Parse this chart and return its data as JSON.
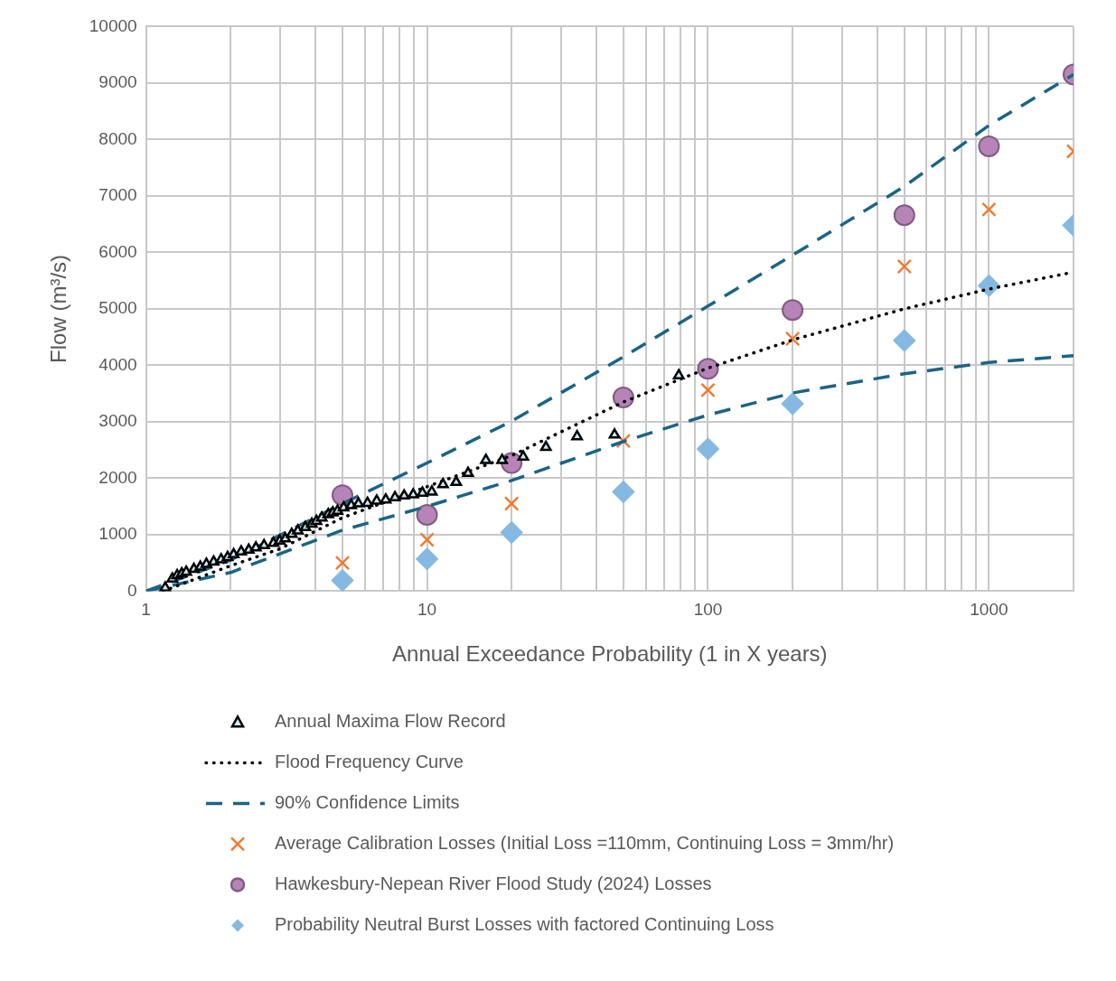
{
  "chart_data": {
    "type": "scatter",
    "xlabel": "Annual Exceedance Probability (1 in X years)",
    "ylabel": "Flow (m³/s)",
    "log": "x",
    "xlim": [
      1,
      2000
    ],
    "xticks": [
      1,
      {
        "value": 2,
        "label": null
      },
      {
        "value": 3,
        "label": null
      },
      {
        "value": 4,
        "label": null
      },
      {
        "value": 5,
        "label": null
      },
      {
        "value": 6,
        "label": null
      },
      {
        "value": 7,
        "label": null
      },
      {
        "value": 8,
        "label": null
      },
      {
        "value": 9,
        "label": null
      },
      10,
      {
        "value": 20,
        "label": null
      },
      {
        "value": 30,
        "label": null
      },
      {
        "value": 40,
        "label": null
      },
      {
        "value": 50,
        "label": null
      },
      {
        "value": 60,
        "label": null
      },
      {
        "value": 70,
        "label": null
      },
      {
        "value": 80,
        "label": null
      },
      {
        "value": 90,
        "label": null
      },
      100,
      {
        "value": 200,
        "label": null
      },
      {
        "value": 300,
        "label": null
      },
      {
        "value": 400,
        "label": null
      },
      {
        "value": 500,
        "label": null
      },
      {
        "value": 600,
        "label": null
      },
      {
        "value": 700,
        "label": null
      },
      {
        "value": 800,
        "label": null
      },
      {
        "value": 900,
        "label": null
      },
      1000,
      {
        "value": 2000,
        "label": null
      }
    ],
    "ylim": [
      0,
      10000
    ],
    "yticks": [
      0,
      1000,
      2000,
      3000,
      4000,
      5000,
      6000,
      7000,
      8000,
      9000,
      10000
    ],
    "grid": true,
    "legend": "bottom",
    "series": [
      {
        "name": "Annual Maxima Flow Record",
        "type": "scatter",
        "marker": "triangle",
        "color": "#000000",
        "x": [
          1.17,
          1.24,
          1.29,
          1.34,
          1.39,
          1.48,
          1.56,
          1.64,
          1.74,
          1.85,
          1.95,
          2.05,
          2.18,
          2.32,
          2.46,
          2.63,
          2.84,
          2.99,
          3.13,
          3.3,
          3.47,
          3.69,
          3.89,
          4.04,
          4.22,
          4.45,
          4.62,
          4.8,
          5.05,
          5.37,
          5.7,
          6.14,
          6.62,
          7.13,
          7.69,
          8.29,
          8.93,
          9.63,
          10.4,
          11.4,
          12.7,
          14.0,
          16.2,
          18.5,
          22.0,
          26.5,
          34.2,
          46.5,
          78.7
        ],
        "values": [
          60,
          220,
          280,
          310,
          340,
          390,
          430,
          480,
          520,
          560,
          600,
          650,
          700,
          730,
          770,
          810,
          850,
          890,
          930,
          1010,
          1070,
          1130,
          1190,
          1240,
          1300,
          1360,
          1390,
          1420,
          1480,
          1520,
          1550,
          1560,
          1600,
          1620,
          1660,
          1690,
          1710,
          1740,
          1760,
          1890,
          1930,
          2090,
          2320,
          2320,
          2380,
          2550,
          2740,
          2770,
          3820
        ]
      },
      {
        "name": "Flood Frequency Curve",
        "type": "line",
        "line_style": "dotted",
        "marker": "none",
        "color": "#000000",
        "x": [
          1.15,
          2,
          3,
          5,
          10,
          20,
          50,
          100,
          200,
          500,
          1000,
          2000
        ],
        "values": [
          0,
          450,
          750,
          1300,
          1850,
          2400,
          3350,
          3950,
          4450,
          5000,
          5350,
          5650
        ]
      },
      {
        "name": "90% Confidence Limits",
        "type": "line",
        "line_style": "dashed",
        "marker": "none",
        "color": "#1b6487",
        "x": [
          1,
          2,
          5,
          10,
          20,
          50,
          100,
          200,
          500,
          1000,
          2000
        ],
        "values": [
          0,
          550,
          1550,
          2270,
          3010,
          4150,
          5050,
          5950,
          7170,
          8250,
          9150
        ]
      },
      {
        "type": "line",
        "line_style": "dashed",
        "marker": "none",
        "color": "#1b6487",
        "x": [
          1,
          2,
          5,
          10,
          20,
          50,
          100,
          200,
          500,
          1000,
          2000
        ],
        "values": [
          0,
          330,
          1080,
          1500,
          1960,
          2650,
          3120,
          3510,
          3850,
          4050,
          4170
        ]
      },
      {
        "name": "Average Calibration Losses (Initial Loss =110mm, Continuing Loss = 3mm/hr)",
        "type": "scatter",
        "marker": "cross",
        "color": "#ed7d31",
        "x": [
          5,
          10,
          20,
          50,
          100,
          200,
          500,
          1000,
          2000
        ],
        "values": [
          500,
          910,
          1550,
          2660,
          3560,
          4470,
          5750,
          6760,
          7790
        ]
      },
      {
        "name": "Hawkesbury-Nepean River Flood Study (2024) Losses",
        "type": "scatter",
        "marker": "circle",
        "color": "#b784b7",
        "x": [
          5,
          10,
          20,
          50,
          100,
          200,
          500,
          1000,
          2000
        ],
        "values": [
          1700,
          1350,
          2270,
          3430,
          3940,
          4980,
          6660,
          7880,
          9150
        ]
      },
      {
        "name": "Probability Neutral Burst Losses with factored Continuing Loss",
        "type": "scatter",
        "marker": "diamond",
        "color": "#85b9e2",
        "x": [
          5,
          10,
          20,
          50,
          100,
          200,
          500,
          1000,
          2000
        ],
        "values": [
          190,
          570,
          1040,
          1760,
          2520,
          3320,
          4440,
          5410,
          6480
        ]
      }
    ]
  }
}
